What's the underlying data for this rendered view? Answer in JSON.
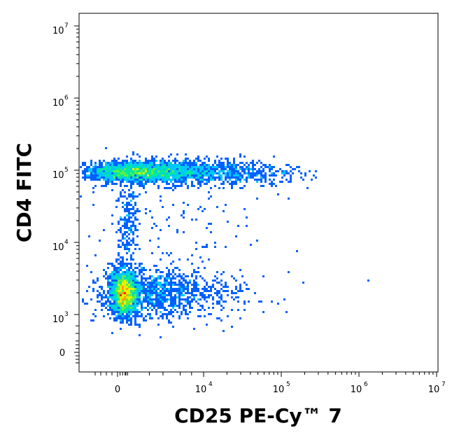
{
  "chart_data": {
    "type": "scatter",
    "style": "flow-cytometry-density-pseudocolor",
    "xlabel": "CD25 PE-Cy™ 7",
    "ylabel": "CD4 FITC",
    "x_scale": "biexponential",
    "y_scale": "biexponential",
    "xlim": [
      -1000,
      10000000
    ],
    "ylim": [
      -400,
      10000000
    ],
    "grid": false,
    "x_ticks": [
      {
        "value": 0,
        "base": "0",
        "exp": ""
      },
      {
        "value": 10000,
        "base": "10",
        "exp": "4"
      },
      {
        "value": 100000,
        "base": "10",
        "exp": "5"
      },
      {
        "value": 1000000,
        "base": "10",
        "exp": "6"
      },
      {
        "value": 10000000,
        "base": "10",
        "exp": "7"
      }
    ],
    "y_ticks": [
      {
        "value": 0,
        "base": "0",
        "exp": ""
      },
      {
        "value": 1000,
        "base": "10",
        "exp": "3"
      },
      {
        "value": 10000,
        "base": "10",
        "exp": "4"
      },
      {
        "value": 100000,
        "base": "10",
        "exp": "5"
      },
      {
        "value": 1000000,
        "base": "10",
        "exp": "6"
      },
      {
        "value": 10000000,
        "base": "10",
        "exp": "7"
      }
    ],
    "density_colors": [
      "#0000d0",
      "#0060ff",
      "#00c8ff",
      "#00e8a0",
      "#60f040",
      "#e8f000",
      "#ffa000",
      "#ff2000"
    ],
    "populations": [
      {
        "x_center": 100,
        "y_center": 2000,
        "x_spread_decades": 0.35,
        "y_spread_decades": 0.12,
        "peak_density": 1.0
      },
      {
        "x_center": 3000,
        "y_center": 95000,
        "x_spread_decades": 0.55,
        "y_spread_decades": 0.06,
        "peak_density": 0.75
      },
      {
        "x_center": 100,
        "y_center": 20000,
        "x_spread_decades": 0.15,
        "y_spread_decades": 0.15,
        "peak_density": 0.3
      }
    ]
  }
}
